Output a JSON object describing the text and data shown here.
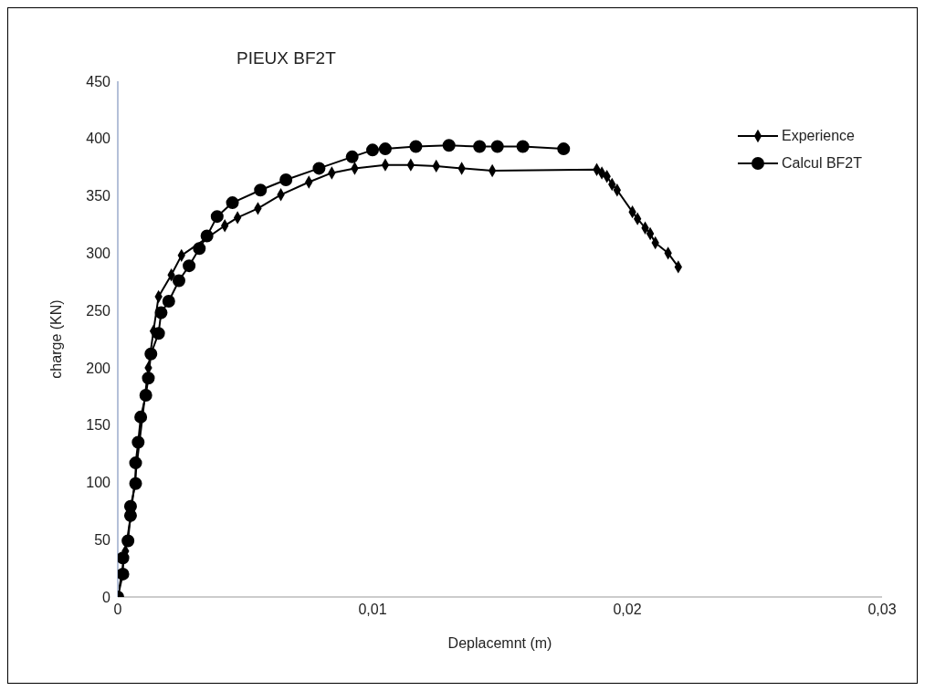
{
  "chart_data": {
    "type": "line",
    "title": "PIEUX BF2T",
    "xlabel": "Deplacemnt (m)",
    "ylabel": "charge (KN)",
    "xlim": [
      0,
      0.03
    ],
    "xticks": [
      {
        "value": 0,
        "label": "0"
      },
      {
        "value": 0.01,
        "label": "0,01"
      },
      {
        "value": 0.02,
        "label": "0,02"
      },
      {
        "value": 0.03,
        "label": "0,03"
      }
    ],
    "ylim": [
      0,
      450
    ],
    "yticks": [
      0,
      50,
      100,
      150,
      200,
      250,
      300,
      350,
      400,
      450
    ],
    "grid": false,
    "legend": "top right",
    "series": [
      {
        "name": "Experience",
        "color": "#000000",
        "marker": "diamond",
        "x": [
          0,
          0.0002,
          0.0003,
          0.0005,
          0.0006,
          0.0008,
          0.001,
          0.0012,
          0.0014,
          0.0016,
          0.0021,
          0.0025,
          0.0042,
          0.0047,
          0.0055,
          0.0064,
          0.0075,
          0.0084,
          0.0093,
          0.0105,
          0.0115,
          0.0125,
          0.0135,
          0.0147,
          0.0188,
          0.019,
          0.0192,
          0.0194,
          0.0196,
          0.0202,
          0.0204,
          0.0207,
          0.0209,
          0.0211,
          0.0216,
          0.022
        ],
        "values": [
          0,
          null,
          40,
          70,
          null,
          null,
          null,
          200,
          232,
          262,
          281,
          298,
          324,
          331,
          339,
          351,
          362,
          370,
          374,
          377,
          377,
          376,
          374,
          372,
          373,
          370,
          367,
          360,
          355,
          336,
          330,
          322,
          317,
          309,
          300,
          288
        ]
      },
      {
        "name": "Calcul BF2T",
        "color": "#000000",
        "marker": "circle",
        "x": [
          0,
          0.0002,
          0.0002,
          0.0004,
          0.0005,
          0.0005,
          0.0007,
          0.0007,
          0.0008,
          0.0009,
          0.0011,
          0.0012,
          0.0013,
          0.0016,
          0.0017,
          0.002,
          0.0024,
          0.0028,
          0.0032,
          0.0035,
          0.0039,
          0.0045,
          0.0056,
          0.0066,
          0.0079,
          0.0092,
          0.01,
          0.0105,
          0.0117,
          0.013,
          0.0142,
          0.0149,
          0.0159,
          0.0175
        ],
        "values": [
          0,
          20,
          34,
          49,
          71,
          79,
          99,
          117,
          135,
          157,
          176,
          191,
          212,
          230,
          248,
          258,
          276,
          289,
          304,
          315,
          332,
          344,
          355,
          364,
          374,
          384,
          390,
          391,
          393,
          394,
          393,
          393,
          393,
          391
        ]
      }
    ]
  }
}
